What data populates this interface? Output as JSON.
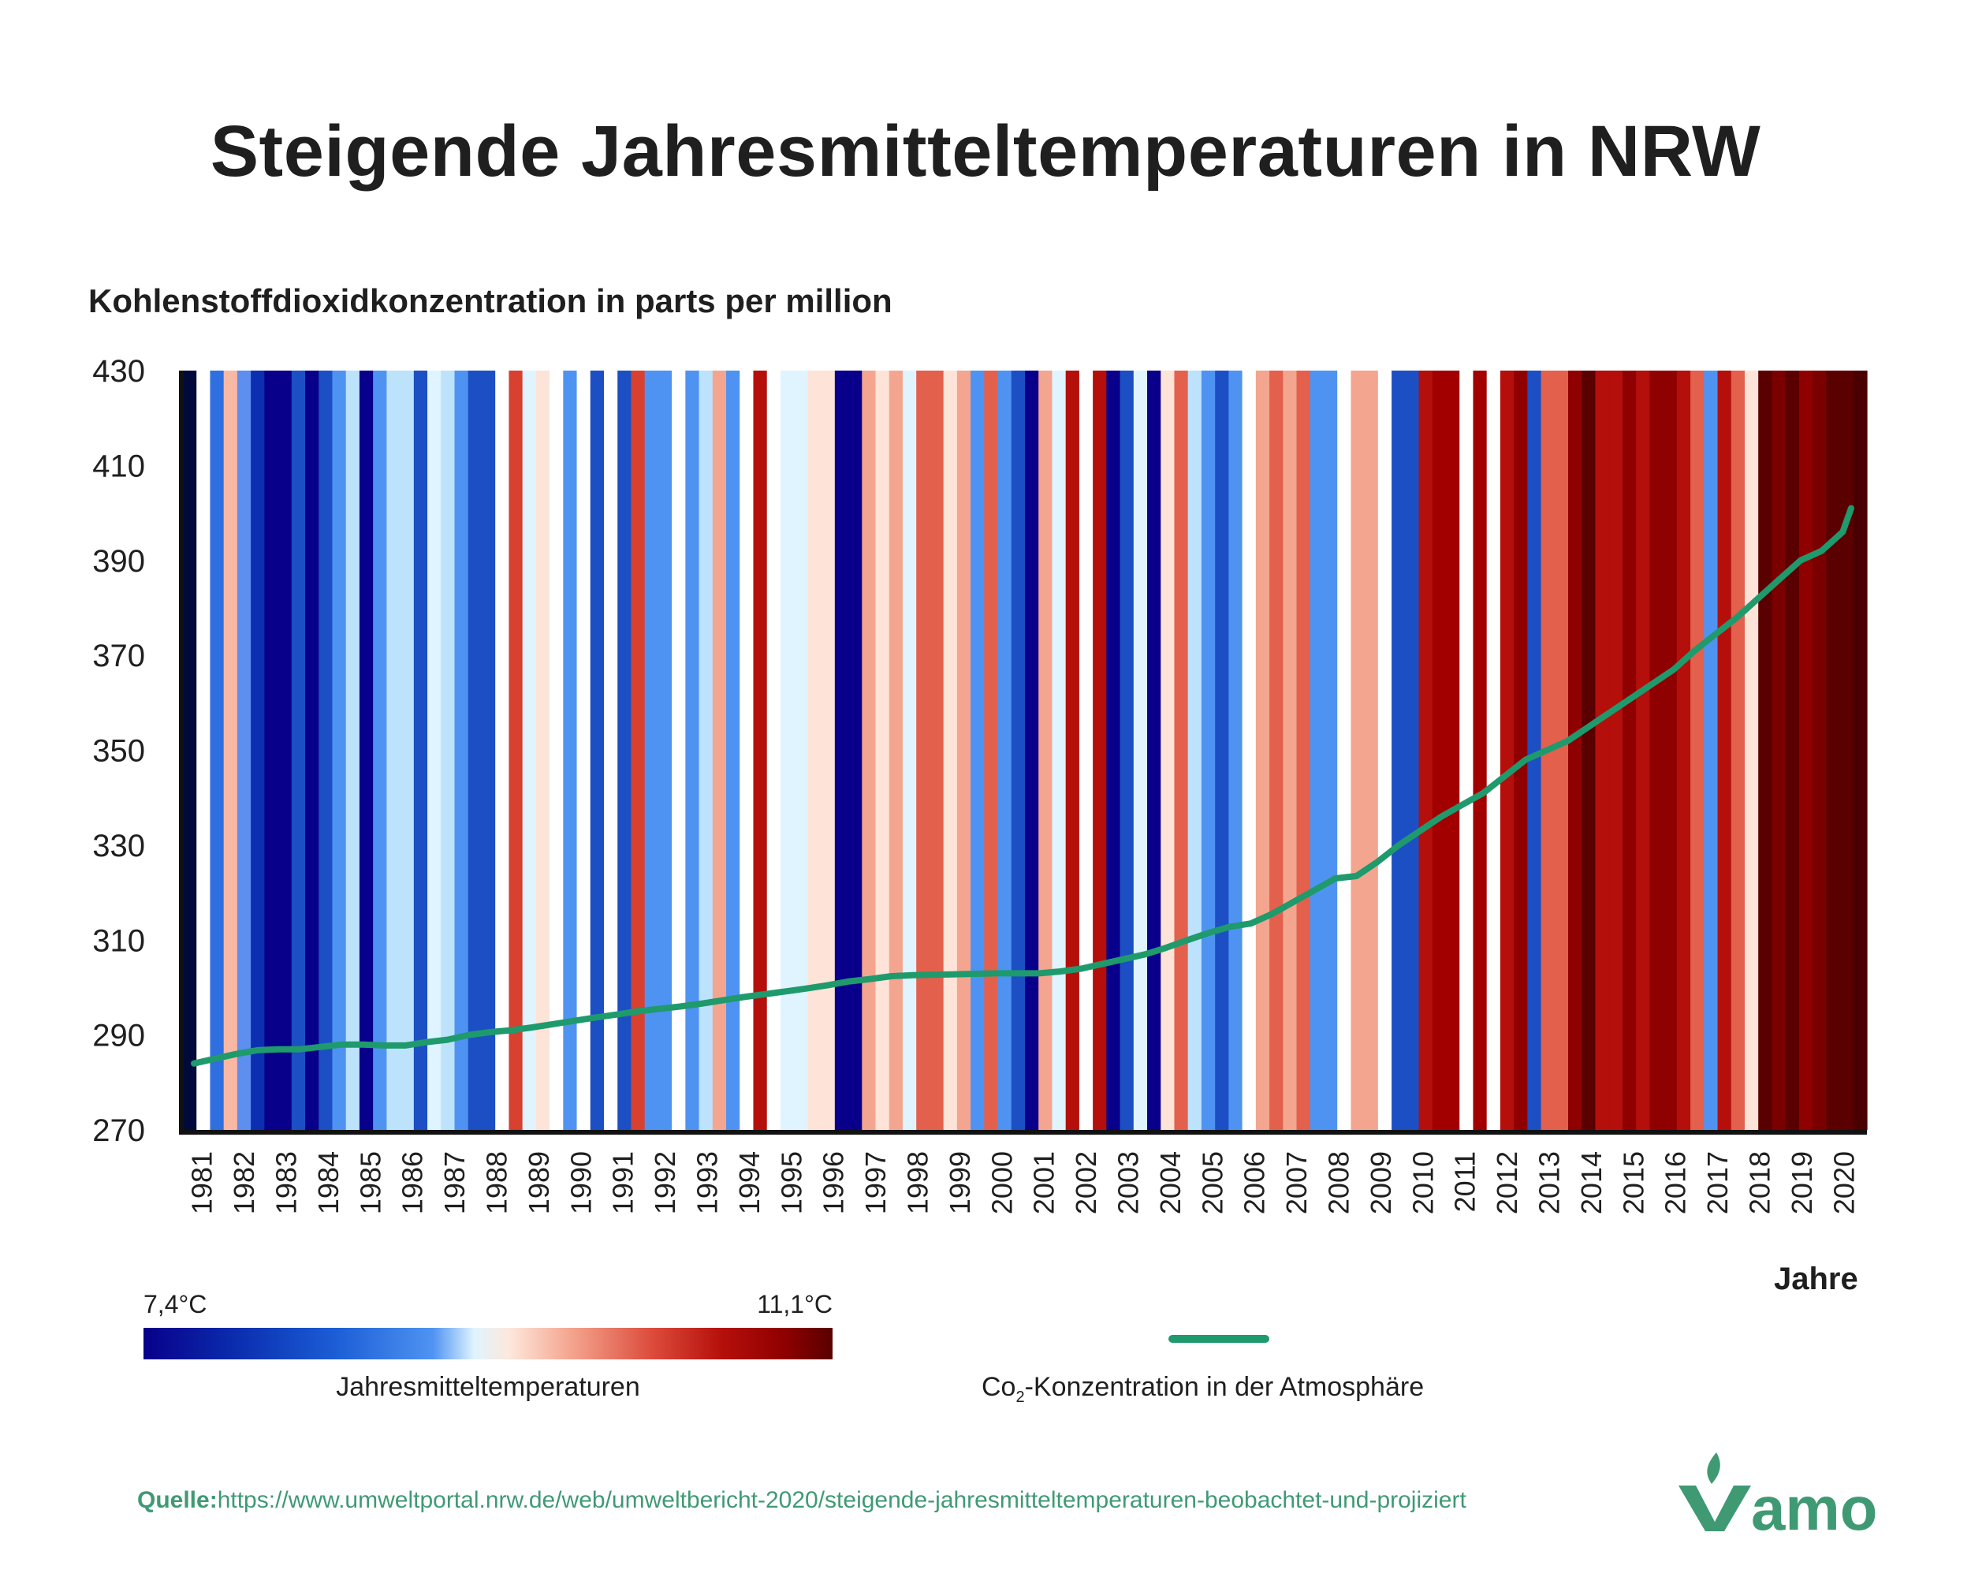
{
  "title": "Steigende Jahresmitteltemperaturen in NRW",
  "chart_data": {
    "type": "line",
    "title": "Steigende Jahresmitteltemperaturen in NRW",
    "ylabel": "Kohlenstoffdioxidkonzentration in parts per million",
    "xlabel": "Jahre",
    "ylim": [
      270,
      430
    ],
    "yticks": [
      430,
      410,
      390,
      370,
      350,
      330,
      310,
      290,
      270
    ],
    "xticks": [
      "1981",
      "1982",
      "1983",
      "1984",
      "1985",
      "1986",
      "1987",
      "1988",
      "1989",
      "1990",
      "1991",
      "1992",
      "1993",
      "1994",
      "1995",
      "1996",
      "1997",
      "1998",
      "1999",
      "2000",
      "2001",
      "2002",
      "2003",
      "2004",
      "2005",
      "2006",
      "2007",
      "2008",
      "2009",
      "2010",
      "2011",
      "2012",
      "2013",
      "2014",
      "2015",
      "2016",
      "2017",
      "2018",
      "2019",
      "2020"
    ],
    "stripes": {
      "description_label": "Jahresmitteltemperaturen",
      "range_label_min": "7,4°C",
      "range_label_max": "11,1°C",
      "colors": [
        "#000a3a",
        "#ffffff",
        "#2f6fe0",
        "#f8b8a4",
        "#5d8ef0",
        "#0b2fb0",
        "#08008a",
        "#08008a",
        "#1c4fc4",
        "#08008a",
        "#1c4fc4",
        "#4f93f2",
        "#bde2fb",
        "#08008a",
        "#4f93f2",
        "#bde2fb",
        "#bde2fb",
        "#1c4fc4",
        "#dff4ff",
        "#bde2fb",
        "#4f93f2",
        "#1c4fc4",
        "#1c4fc4",
        "#ffffff",
        "#d8402f",
        "#dff4ff",
        "#fde3d8",
        "#ffffff",
        "#4f93f2",
        "#ffffff",
        "#1c4fc4",
        "#ffffff",
        "#1c4fc4",
        "#d8402f",
        "#4f93f2",
        "#4f93f2",
        "#ffffff",
        "#4f93f2",
        "#bde2fb",
        "#f4a58f",
        "#4f93f2",
        "#ffffff",
        "#b50f0b",
        "#ffffff",
        "#dff4ff",
        "#dff4ff",
        "#fde3d8",
        "#fde3d8",
        "#08008a",
        "#08008a",
        "#f4a58f",
        "#fde3d8",
        "#f4a58f",
        "#dff4ff",
        "#e3604d",
        "#e3604d",
        "#fde3d8",
        "#f4a58f",
        "#4f93f2",
        "#e3604d",
        "#4f93f2",
        "#1c4fc4",
        "#08008a",
        "#f4a58f",
        "#dff4ff",
        "#b50f0b",
        "#ffffff",
        "#b50f0b",
        "#08008a",
        "#1c4fc4",
        "#dff4ff",
        "#08008a",
        "#fde3d8",
        "#e3604d",
        "#bde2fb",
        "#4f93f2",
        "#1c4fc4",
        "#4f93f2",
        "#ffffff",
        "#f4a58f",
        "#e3604d",
        "#f4a58f",
        "#e3604d",
        "#4f93f2",
        "#4f93f2",
        "#ffffff",
        "#f4a58f",
        "#f4a58f",
        "#ffffff",
        "#1c4fc4",
        "#1c4fc4",
        "#b50f0b",
        "#a20000",
        "#a20000",
        "#ffffff",
        "#a20000",
        "#ffffff",
        "#b50f0b",
        "#8f0000",
        "#1c4fc4",
        "#e3604d",
        "#e3604d",
        "#8f0000",
        "#5a0000",
        "#b50f0b",
        "#b50f0b",
        "#8f0000",
        "#b50f0b",
        "#8f0000",
        "#8f0000",
        "#b50f0b",
        "#e3604d",
        "#4f93f2",
        "#b50f0b",
        "#e3604d",
        "#fde3d8",
        "#5a0000",
        "#7a0000",
        "#5a0000",
        "#8f0000",
        "#7a0000",
        "#5a0000",
        "#5a0000",
        "#4a0000"
      ]
    },
    "series": [
      {
        "name": "Co2-Konzentration in der Atmosphäre",
        "color": "#1f9a6c",
        "x": [
          0,
          0.5,
          1,
          1.5,
          2,
          2.5,
          3,
          3.5,
          4,
          4.5,
          5,
          5.5,
          6,
          6.5,
          7,
          7.5,
          8,
          8.5,
          9,
          9.5,
          10,
          10.5,
          11,
          11.5,
          12,
          12.5,
          13,
          13.5,
          14,
          14.5,
          15,
          15.5,
          16,
          16.5,
          17,
          17.5,
          18,
          18.5,
          19,
          19.5,
          20,
          20.5,
          21,
          21.5,
          22,
          22.5,
          23,
          23.5,
          24,
          24.5,
          25,
          25.5,
          26,
          26.5,
          27,
          27.5,
          28,
          28.5,
          29,
          29.5,
          30,
          30.5,
          31,
          31.5,
          32,
          32.5,
          33,
          33.5,
          34,
          34.5,
          35,
          35.5,
          36,
          36.5,
          37,
          37.5,
          38,
          38.5,
          39,
          39.2
        ],
        "values": [
          284,
          285,
          286,
          286.8,
          287,
          287,
          287.5,
          288,
          288,
          287.8,
          287.8,
          288.5,
          289,
          290,
          290.6,
          291,
          291.6,
          292.3,
          293,
          293.7,
          294.3,
          295,
          295.5,
          296,
          296.6,
          297.3,
          298,
          298.6,
          299.2,
          299.8,
          300.5,
          301.3,
          301.8,
          302.4,
          302.6,
          302.7,
          302.8,
          302.9,
          303,
          303,
          303,
          303.4,
          304,
          305,
          306,
          307,
          308.4,
          310,
          311.5,
          312.8,
          313.5,
          315.5,
          318,
          320.5,
          323,
          323.5,
          326.5,
          330,
          333,
          336,
          338.5,
          341,
          344.5,
          348,
          350,
          352,
          355,
          358,
          361,
          364,
          367,
          371,
          374.5,
          378,
          382,
          386,
          390,
          392,
          396,
          401
        ],
        "x_unit": "year index from 1981 (0 = 1981, 39 = 2020)"
      }
    ],
    "legend": {
      "line_label_prefix": "Co",
      "line_label_sub": "2",
      "line_label_suffix": "-Konzentration in der Atmosphäre",
      "temp_label": "Jahresmitteltemperaturen",
      "temp_min": "7,4°C",
      "temp_max": "11,1°C",
      "placement": "bottom"
    },
    "grid": false
  },
  "source": {
    "label": "Quelle:",
    "url_text": "https://www.umweltportal.nrw.de/web/umweltbericht-2020/steigende-jahresmitteltemperaturen-beobachtet-und-projiziert"
  },
  "logo": {
    "text": "Vamo",
    "color": "#3f9a73"
  }
}
